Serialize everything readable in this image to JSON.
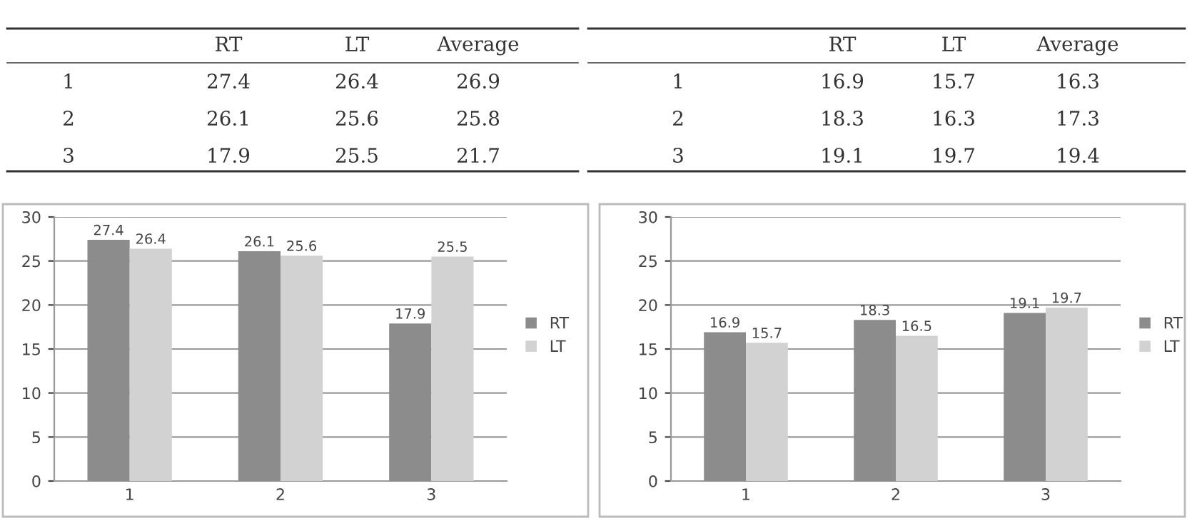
{
  "chart_data": [
    {
      "type": "bar",
      "categories": [
        "1",
        "2",
        "3"
      ],
      "series": [
        {
          "name": "RT",
          "color": "#8c8c8c",
          "values": [
            27.4,
            26.1,
            17.9
          ]
        },
        {
          "name": "LT",
          "color": "#d2d2d2",
          "values": [
            26.4,
            25.6,
            25.5
          ]
        }
      ],
      "ylim": [
        0,
        30
      ],
      "yticks": [
        0,
        5,
        10,
        15,
        20,
        25,
        30
      ],
      "grid": "y",
      "legend": "right",
      "data_labels": true,
      "annotations": [
        "RT",
        "LT",
        "Average",
        "1",
        "27.4",
        "26.4",
        "26.9",
        "2",
        "26.1",
        "25.6",
        "25.8",
        "3",
        "17.9",
        "25.5",
        "21.7"
      ]
    },
    {
      "type": "bar",
      "categories": [
        "1",
        "2",
        "3"
      ],
      "series": [
        {
          "name": "RT",
          "color": "#8c8c8c",
          "values": [
            16.9,
            18.3,
            19.1
          ]
        },
        {
          "name": "LT",
          "color": "#d2d2d2",
          "values": [
            15.7,
            16.5,
            19.7
          ]
        }
      ],
      "ylim": [
        0,
        30
      ],
      "yticks": [
        0,
        5,
        10,
        15,
        20,
        25,
        30
      ],
      "grid": "y",
      "legend": "right",
      "data_labels": true,
      "annotations": [
        "RT",
        "LT",
        "Average",
        "1",
        "16.9",
        "15.7",
        "16.3",
        "2",
        "18.3",
        "16.3",
        "17.3",
        "3",
        "19.1",
        "19.7",
        "19.4"
      ]
    }
  ]
}
